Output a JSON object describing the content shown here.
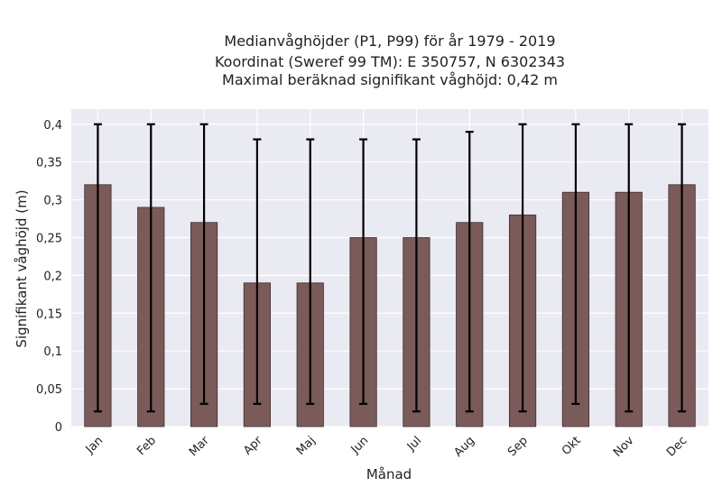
{
  "chart_data": {
    "type": "bar",
    "title_lines": [
      "Medianvåghöjder (P1, P99) för år 1979 - 2019",
      "Koordinat (Sweref 99 TM): E 350757, N 6302343",
      "Maximal beräknad signifikant våghöjd: 0,42 m"
    ],
    "xlabel": "Månad",
    "ylabel": "Signifikant våghöjd (m)",
    "categories": [
      "Jan",
      "Feb",
      "Mar",
      "Apr",
      "Maj",
      "Jun",
      "Jul",
      "Aug",
      "Sep",
      "Okt",
      "Nov",
      "Dec"
    ],
    "values": [
      0.32,
      0.29,
      0.27,
      0.19,
      0.19,
      0.25,
      0.25,
      0.27,
      0.28,
      0.31,
      0.31,
      0.32
    ],
    "err_low": [
      0.02,
      0.02,
      0.03,
      0.03,
      0.03,
      0.03,
      0.02,
      0.02,
      0.02,
      0.03,
      0.02,
      0.02
    ],
    "err_high": [
      0.4,
      0.4,
      0.4,
      0.38,
      0.38,
      0.38,
      0.38,
      0.39,
      0.4,
      0.4,
      0.4,
      0.4
    ],
    "yticks": [
      0,
      0.05,
      0.1,
      0.15,
      0.2,
      0.25,
      0.3,
      0.35,
      0.4
    ],
    "ytick_labels": [
      "0",
      "0,05",
      "0,1",
      "0,15",
      "0,2",
      "0,25",
      "0,3",
      "0,35",
      "0,4"
    ],
    "ylim": [
      0,
      0.42
    ],
    "grid": true,
    "colors": {
      "bar": "#7b5a5a",
      "bar_edge": "#3f2e2e",
      "plot_bg": "#eaeaf2",
      "grid": "#ffffff",
      "error_bar": "#000000"
    }
  }
}
